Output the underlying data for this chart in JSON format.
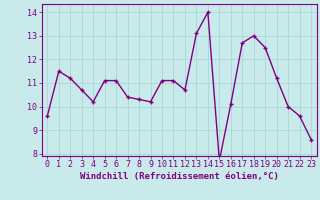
{
  "x": [
    0,
    1,
    2,
    3,
    4,
    5,
    6,
    7,
    8,
    9,
    10,
    11,
    12,
    13,
    14,
    15,
    16,
    17,
    18,
    19,
    20,
    21,
    22,
    23
  ],
  "y": [
    9.6,
    11.5,
    11.2,
    10.7,
    10.2,
    11.1,
    11.1,
    10.4,
    10.3,
    10.2,
    11.1,
    11.1,
    10.7,
    13.1,
    14.0,
    7.7,
    10.1,
    12.7,
    13.0,
    12.5,
    11.2,
    10.0,
    9.6,
    8.6
  ],
  "line_color": "#800080",
  "marker": "+",
  "marker_size": 3.5,
  "marker_linewidth": 1.0,
  "bg_color": "#c8eaea",
  "grid_color": "#b0d8d8",
  "xlabel": "Windchill (Refroidissement éolien,°C)",
  "xlabel_color": "#800080",
  "tick_color": "#800080",
  "spine_color": "#800080",
  "ylim": [
    7.9,
    14.35
  ],
  "xlim": [
    -0.5,
    23.5
  ],
  "yticks": [
    8,
    9,
    10,
    11,
    12,
    13,
    14
  ],
  "xticks": [
    0,
    1,
    2,
    3,
    4,
    5,
    6,
    7,
    8,
    9,
    10,
    11,
    12,
    13,
    14,
    15,
    16,
    17,
    18,
    19,
    20,
    21,
    22,
    23
  ],
  "linewidth": 1.0,
  "xlabel_fontsize": 6.5,
  "tick_fontsize": 6.0
}
